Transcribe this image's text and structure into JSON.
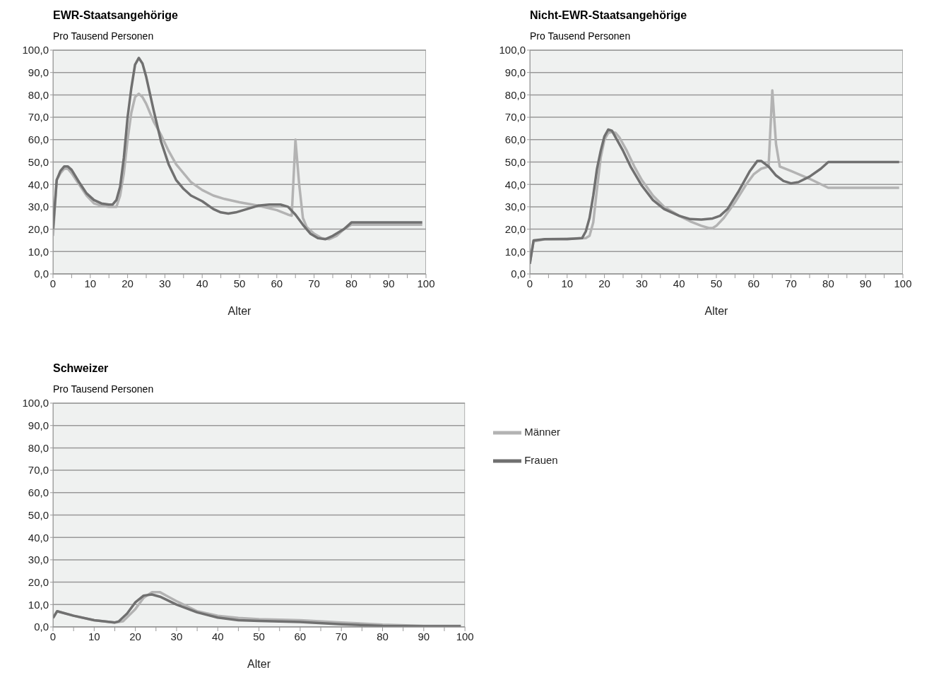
{
  "chart_data": [
    {
      "type": "line",
      "title": "EWR-Staatsangehörige",
      "ylabel": "Pro Tausend Personen",
      "xlabel": "Alter",
      "xlim": [
        0,
        100
      ],
      "ylim": [
        0,
        100
      ],
      "xticks": [
        0,
        {
          "value": 5,
          "label": null
        },
        10,
        {
          "value": 15,
          "label": null
        },
        20,
        {
          "value": 25,
          "label": null
        },
        30,
        {
          "value": 35,
          "label": null
        },
        40,
        {
          "value": 45,
          "label": null
        },
        50,
        {
          "value": 55,
          "label": null
        },
        60,
        {
          "value": 65,
          "label": null
        },
        70,
        {
          "value": 75,
          "label": null
        },
        80,
        {
          "value": 85,
          "label": null
        },
        90,
        {
          "value": 95,
          "label": null
        },
        100
      ],
      "yticks": [
        {
          "value": 0,
          "label": "0,0"
        },
        {
          "value": 10,
          "label": "10,0"
        },
        {
          "value": 20,
          "label": "20,0"
        },
        {
          "value": 30,
          "label": "30,0"
        },
        {
          "value": 40,
          "label": "40,0"
        },
        {
          "value": 50,
          "label": "50,0"
        },
        {
          "value": 60,
          "label": "60,0"
        },
        {
          "value": 70,
          "label": "70,0"
        },
        {
          "value": 80,
          "label": "80,0"
        },
        {
          "value": 90,
          "label": "90,0"
        },
        {
          "value": 100,
          "label": "100,0"
        }
      ],
      "grid": "y",
      "legend": false,
      "marker": "none",
      "line_style": "solid",
      "series": [
        {
          "color": "#b3b3b3",
          "x": [
            0,
            1,
            2,
            3,
            4,
            5,
            7,
            9,
            11,
            13,
            15,
            17,
            18,
            19,
            20,
            21,
            22,
            23,
            24,
            25,
            27,
            29,
            31,
            33,
            35,
            37,
            40,
            43,
            46,
            50,
            55,
            60,
            63,
            64,
            65,
            66,
            67,
            68,
            70,
            72,
            74,
            76,
            78,
            80,
            99
          ],
          "values": [
            17,
            42,
            45,
            47,
            47,
            45,
            40,
            35,
            31.5,
            30.5,
            30,
            30,
            35,
            45,
            60,
            72,
            79,
            80.5,
            79,
            76,
            68,
            62,
            55,
            49,
            45,
            41,
            37.5,
            35,
            33.5,
            32,
            30.5,
            28.5,
            26.5,
            26,
            60,
            40,
            25,
            21,
            18,
            16,
            15.5,
            17,
            20,
            22,
            22
          ]
        },
        {
          "color": "#707070",
          "x": [
            0,
            1,
            2,
            3,
            4,
            5,
            7,
            9,
            11,
            13,
            15,
            16,
            17,
            18,
            19,
            20,
            21,
            22,
            23,
            24,
            25,
            27,
            29,
            31,
            33,
            35,
            37,
            40,
            43,
            45,
            47,
            49,
            52,
            55,
            58,
            61,
            63,
            65,
            67,
            69,
            71,
            73,
            75,
            78,
            80,
            99
          ],
          "values": [
            20,
            42,
            46,
            48,
            48,
            46.5,
            41,
            36,
            33,
            31.5,
            31,
            31,
            33,
            39,
            52,
            70,
            83,
            93.5,
            96.5,
            94,
            88,
            73,
            59,
            49,
            42,
            38,
            35,
            32.5,
            29,
            27.5,
            27,
            27.5,
            29,
            30.5,
            31,
            31,
            30,
            26.5,
            22,
            18,
            16,
            15.5,
            17,
            20,
            23,
            23
          ]
        }
      ]
    },
    {
      "type": "line",
      "title": "Nicht-EWR-Staatsangehörige",
      "ylabel": "Pro Tausend Personen",
      "xlabel": "Alter",
      "xlim": [
        0,
        100
      ],
      "ylim": [
        0,
        100
      ],
      "xticks": [
        0,
        {
          "value": 5,
          "label": null
        },
        10,
        {
          "value": 15,
          "label": null
        },
        20,
        {
          "value": 25,
          "label": null
        },
        30,
        {
          "value": 35,
          "label": null
        },
        40,
        {
          "value": 45,
          "label": null
        },
        50,
        {
          "value": 55,
          "label": null
        },
        60,
        {
          "value": 65,
          "label": null
        },
        70,
        {
          "value": 75,
          "label": null
        },
        80,
        {
          "value": 85,
          "label": null
        },
        90,
        {
          "value": 95,
          "label": null
        },
        100
      ],
      "yticks": [
        {
          "value": 0,
          "label": "0,0"
        },
        {
          "value": 10,
          "label": "10,0"
        },
        {
          "value": 20,
          "label": "20,0"
        },
        {
          "value": 30,
          "label": "30,0"
        },
        {
          "value": 40,
          "label": "40,0"
        },
        {
          "value": 50,
          "label": "50,0"
        },
        {
          "value": 60,
          "label": "60,0"
        },
        {
          "value": 70,
          "label": "70,0"
        },
        {
          "value": 80,
          "label": "80,0"
        },
        {
          "value": 90,
          "label": "90,0"
        },
        {
          "value": 100,
          "label": "100,0"
        }
      ],
      "grid": "y",
      "legend": false,
      "marker": "none",
      "line_style": "solid",
      "series": [
        {
          "color": "#b3b3b3",
          "x": [
            0,
            1,
            4,
            10,
            15,
            16,
            17,
            18,
            19,
            20,
            21,
            22,
            23,
            24,
            26,
            28,
            30,
            33,
            36,
            40,
            43,
            46,
            48,
            49,
            50,
            52,
            55,
            58,
            60,
            62,
            64,
            65,
            66,
            67,
            70,
            75,
            80,
            99
          ],
          "values": [
            5,
            14.5,
            15.5,
            15.8,
            16,
            17,
            23,
            38,
            52,
            60,
            63,
            63.5,
            63,
            61,
            55,
            48,
            42,
            35,
            30,
            26,
            23.5,
            21.5,
            20.5,
            20.5,
            21.5,
            25,
            32,
            40,
            44.5,
            47,
            48,
            82,
            58,
            48,
            46,
            42.5,
            38.5,
            38.5
          ]
        },
        {
          "color": "#707070",
          "x": [
            0,
            1,
            4,
            10,
            14,
            15,
            16,
            17,
            18,
            19,
            20,
            21,
            22,
            23,
            25,
            27,
            30,
            33,
            36,
            40,
            43,
            46,
            49,
            51,
            53,
            56,
            59,
            61,
            62,
            64,
            66,
            68,
            70,
            72,
            75,
            78,
            80,
            99
          ],
          "values": [
            4.5,
            15,
            15.5,
            15.5,
            16,
            19,
            25,
            35,
            47,
            55,
            61.5,
            64.5,
            64,
            61,
            55,
            48,
            39.5,
            33,
            29,
            26,
            24.5,
            24.3,
            24.8,
            26,
            29,
            37,
            46,
            50.5,
            50.5,
            48,
            44,
            41.5,
            40.5,
            41,
            43.5,
            47,
            50,
            50
          ]
        }
      ]
    },
    {
      "type": "line",
      "title": "Schweizer",
      "ylabel": "Pro Tausend Personen",
      "xlabel": "Alter",
      "xlim": [
        0,
        100
      ],
      "ylim": [
        0,
        100
      ],
      "xticks": [
        0,
        {
          "value": 5,
          "label": null
        },
        10,
        {
          "value": 15,
          "label": null
        },
        20,
        {
          "value": 25,
          "label": null
        },
        30,
        {
          "value": 35,
          "label": null
        },
        40,
        {
          "value": 45,
          "label": null
        },
        50,
        {
          "value": 55,
          "label": null
        },
        60,
        {
          "value": 65,
          "label": null
        },
        70,
        {
          "value": 75,
          "label": null
        },
        80,
        {
          "value": 85,
          "label": null
        },
        90,
        {
          "value": 95,
          "label": null
        },
        100
      ],
      "yticks": [
        {
          "value": 0,
          "label": "0,0"
        },
        {
          "value": 10,
          "label": "10,0"
        },
        {
          "value": 20,
          "label": "20,0"
        },
        {
          "value": 30,
          "label": "30,0"
        },
        {
          "value": 40,
          "label": "40,0"
        },
        {
          "value": 50,
          "label": "50,0"
        },
        {
          "value": 60,
          "label": "60,0"
        },
        {
          "value": 70,
          "label": "70,0"
        },
        {
          "value": 80,
          "label": "80,0"
        },
        {
          "value": 90,
          "label": "90,0"
        },
        {
          "value": 100,
          "label": "100,0"
        }
      ],
      "grid": "y",
      "legend": "right",
      "marker": "none",
      "line_style": "solid",
      "series": [
        {
          "name": "Männer",
          "color": "#b3b3b3",
          "x": [
            0,
            1,
            5,
            10,
            15,
            17,
            20,
            22,
            24,
            26,
            28,
            30,
            35,
            40,
            45,
            50,
            60,
            70,
            80,
            90,
            99
          ],
          "values": [
            4,
            7,
            5,
            3,
            2,
            2.5,
            8,
            13,
            15.5,
            15.5,
            13.5,
            11.5,
            7,
            5,
            4,
            3.5,
            3,
            2,
            1,
            0.5,
            0.5
          ]
        },
        {
          "name": "Frauen",
          "color": "#707070",
          "x": [
            0,
            1,
            5,
            10,
            15,
            16,
            18,
            20,
            22,
            24,
            26,
            30,
            35,
            40,
            45,
            50,
            60,
            70,
            80,
            90,
            99
          ],
          "values": [
            4,
            7,
            5,
            3,
            2,
            2.5,
            6,
            11,
            14,
            14.5,
            13.5,
            10,
            6.5,
            4.2,
            3,
            2.7,
            2.2,
            1.2,
            0.5,
            0.3,
            0.3
          ]
        }
      ]
    }
  ]
}
